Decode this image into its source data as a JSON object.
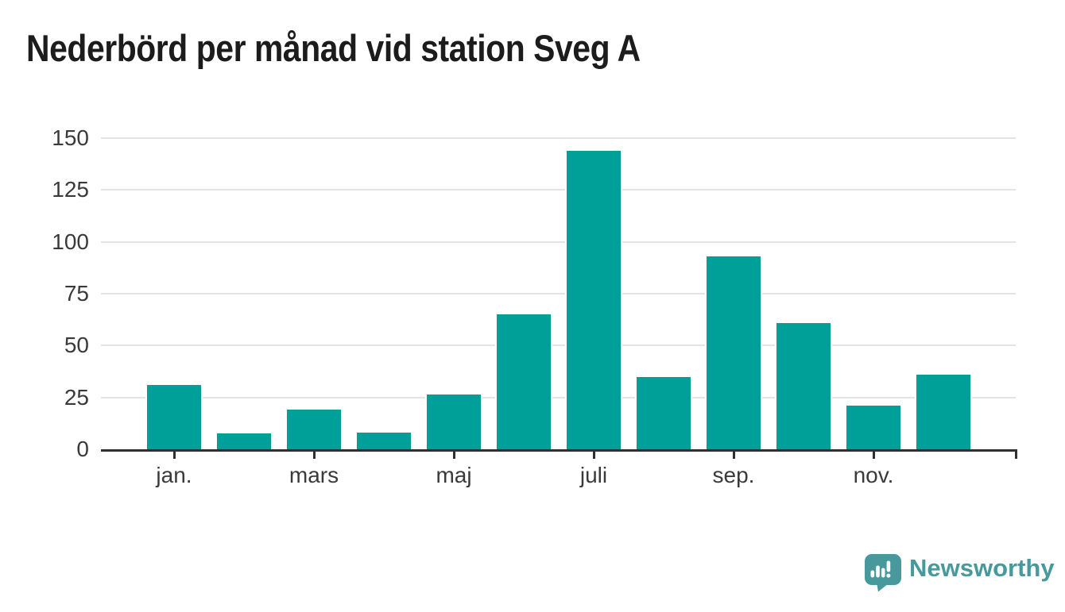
{
  "title": "Nederbörd per månad vid station Sveg A",
  "chart_data": {
    "type": "bar",
    "title": "Nederbörd per månad vid station Sveg A",
    "values": [
      31,
      7.5,
      19,
      8,
      26.5,
      65,
      144,
      35,
      93,
      61,
      21,
      36
    ],
    "x_tick_labels": [
      "jan.",
      "mars",
      "maj",
      "juli",
      "sep.",
      "nov."
    ],
    "x_tick_month_indices": [
      0,
      2,
      4,
      6,
      8,
      10
    ],
    "has_axis_end_tick": true,
    "yticks": [
      0,
      25,
      50,
      75,
      100,
      125,
      150
    ],
    "ytick_labels": [
      "0",
      "25",
      "50",
      "75",
      "100",
      "125",
      "150"
    ],
    "ylim": [
      0,
      150
    ],
    "xlabel": "",
    "ylabel": "",
    "grid": "horizontal",
    "legend": "none",
    "bar_color": "#00a099"
  },
  "branding": {
    "logo_text": "Newsworthy",
    "logo_icon": "newsworthy-bubble-barchart-icon"
  },
  "colors": {
    "background": "#ffffff",
    "bar": "#00a099",
    "gridline": "#e4e4e4",
    "axis": "#303030",
    "tick_label": "#3a3a3a",
    "title": "#1c1c1c",
    "brand": "#47999b"
  }
}
